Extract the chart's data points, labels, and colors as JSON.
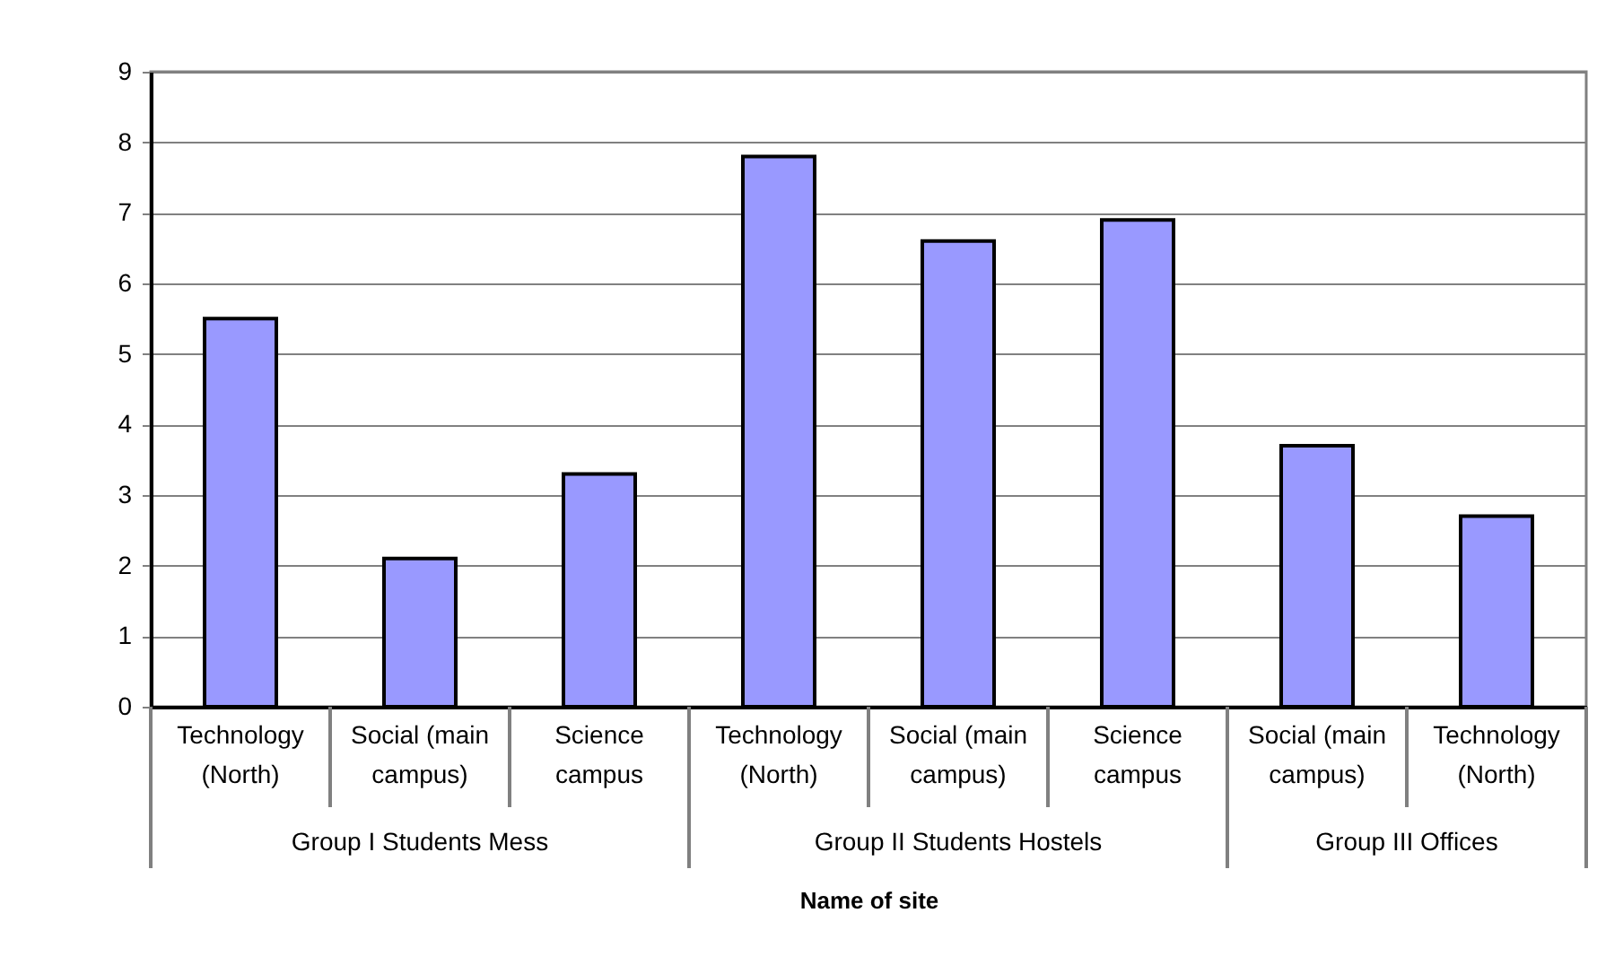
{
  "chart_data": {
    "type": "bar",
    "categories": [
      "Technology (North)",
      "Social (main campus)",
      "Science campus",
      "Technology (North)",
      "Social (main campus)",
      "Science campus",
      "Social (main campus)",
      "Technology (North)"
    ],
    "values": [
      5.5,
      2.1,
      3.3,
      7.8,
      6.6,
      6.9,
      3.7,
      2.7
    ],
    "color": "#9999ff",
    "xlabel": "Name of site",
    "annotations": [
      "Group I Students Mess",
      "Group II Students Hostels",
      "Group III Offices"
    ],
    "ylim": [
      0,
      9
    ],
    "yticks": [
      0,
      1,
      2,
      3,
      4,
      5,
      6,
      7,
      8,
      9
    ],
    "grid": "y"
  }
}
